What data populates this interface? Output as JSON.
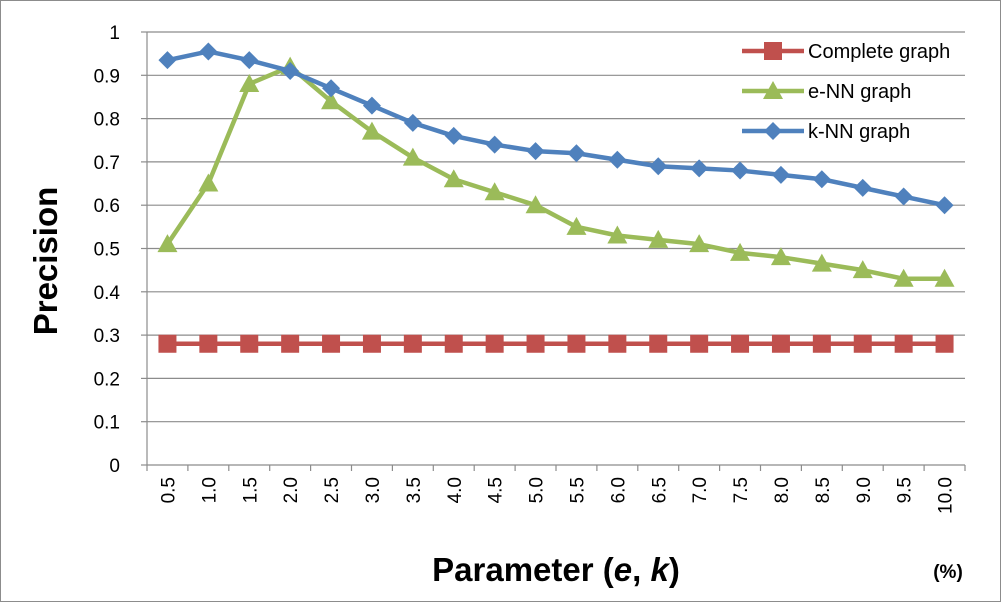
{
  "chart_data": {
    "type": "line",
    "ylabel": "Precision",
    "xlabel_plain": "Parameter (",
    "xlabel_e": "e",
    "xlabel_sep": ", ",
    "xlabel_k": "k",
    "xlabel_close": ")",
    "x_unit": "(%)",
    "ylim": [
      0,
      1
    ],
    "y_ticks": [
      "0",
      "0.1",
      "0.2",
      "0.3",
      "0.4",
      "0.5",
      "0.6",
      "0.7",
      "0.8",
      "0.9",
      "1"
    ],
    "grid": true,
    "legend_position": "top-right",
    "categories": [
      "0.5",
      "1.0",
      "1.5",
      "2.0",
      "2.5",
      "3.0",
      "3.5",
      "4.0",
      "4.5",
      "5.0",
      "5.5",
      "6.0",
      "6.5",
      "7.0",
      "7.5",
      "8.0",
      "8.5",
      "9.0",
      "9.5",
      "10.0"
    ],
    "series": [
      {
        "name": "Complete graph",
        "color": "#c0504d",
        "marker": "square",
        "values": [
          0.28,
          0.28,
          0.28,
          0.28,
          0.28,
          0.28,
          0.28,
          0.28,
          0.28,
          0.28,
          0.28,
          0.28,
          0.28,
          0.28,
          0.28,
          0.28,
          0.28,
          0.28,
          0.28,
          0.28
        ]
      },
      {
        "name": "e-NN graph",
        "color": "#9bbb59",
        "marker": "triangle",
        "values": [
          0.51,
          0.65,
          0.88,
          0.92,
          0.84,
          0.77,
          0.71,
          0.66,
          0.63,
          0.6,
          0.55,
          0.53,
          0.52,
          0.51,
          0.49,
          0.48,
          0.465,
          0.45,
          0.43,
          0.43
        ]
      },
      {
        "name": "k-NN graph",
        "color": "#4f81bd",
        "marker": "diamond",
        "values": [
          0.935,
          0.955,
          0.935,
          0.91,
          0.87,
          0.83,
          0.79,
          0.76,
          0.74,
          0.725,
          0.72,
          0.705,
          0.69,
          0.685,
          0.68,
          0.67,
          0.66,
          0.64,
          0.62,
          0.6
        ]
      }
    ]
  }
}
